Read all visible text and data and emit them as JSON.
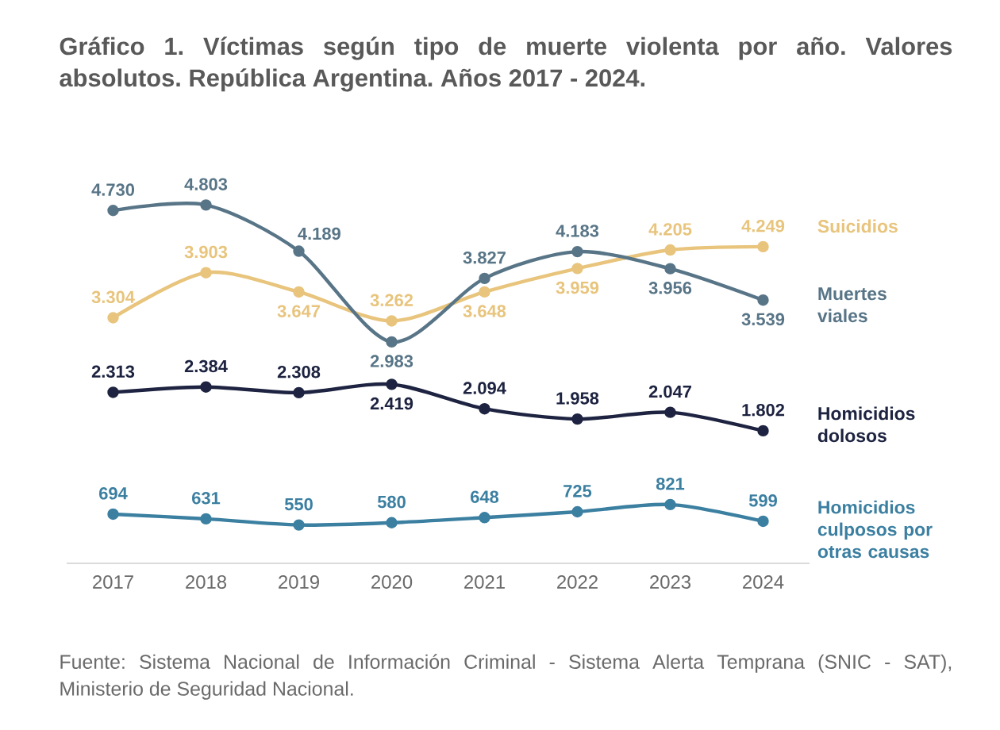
{
  "chart_data": {
    "type": "line",
    "title": "Gráfico 1. Víctimas según tipo de muerte violenta por año. Valores absolutos. República Argentina. Años 2017 - 2024.",
    "annotations": [
      "Fuente: Sistema Nacional de Información Criminal - Sistema Alerta Temprana (SNIC - SAT), Ministerio de Seguridad Nacional."
    ],
    "categories": [
      "2017",
      "2018",
      "2019",
      "2020",
      "2021",
      "2022",
      "2023",
      "2024"
    ],
    "tick_labels": "x",
    "marker": "circle",
    "line_style": "solid",
    "series": [
      {
        "name": "Suicidios",
        "color": "#e8c47c",
        "values": [
          3304,
          3903,
          3647,
          3262,
          3648,
          3959,
          4205,
          4249
        ],
        "value_labels": [
          "3.304",
          "3.903",
          "3.647",
          "3.262",
          "3.648",
          "3.959",
          "4.205",
          "4.249"
        ]
      },
      {
        "name": "Muertes viales",
        "color": "#587587",
        "values": [
          4730,
          4803,
          4189,
          2983,
          3827,
          4183,
          3956,
          3539
        ],
        "value_labels": [
          "4.730",
          "4.803",
          "4.189",
          "2.983",
          "3.827",
          "4.183",
          "3.956",
          "3.539"
        ]
      },
      {
        "name": "Homicidios dolosos",
        "color": "#1d2340",
        "values": [
          2313,
          2384,
          2308,
          2419,
          2094,
          1958,
          2047,
          1802
        ],
        "value_labels": [
          "2.313",
          "2.384",
          "2.308",
          "2.419",
          "2.094",
          "1.958",
          "2.047",
          "1.802"
        ]
      },
      {
        "name": "Homicidios culposos por otras causas",
        "color": "#3b7fa1",
        "values": [
          694,
          631,
          550,
          580,
          648,
          725,
          821,
          599
        ],
        "value_labels": [
          "694",
          "631",
          "550",
          "580",
          "648",
          "725",
          "821",
          "599"
        ]
      }
    ]
  }
}
